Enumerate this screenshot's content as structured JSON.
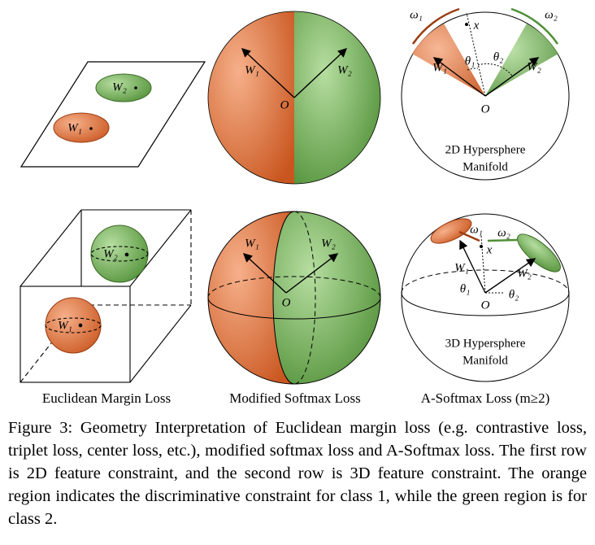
{
  "row1": {
    "euclidean": {
      "w1": "W₁",
      "w2": "W₂"
    },
    "softmax": {
      "w1": "W₁",
      "w2": "W₂",
      "origin": "O"
    },
    "asoftmax": {
      "omega1": "ω₁",
      "omega2": "ω₂",
      "x": "x",
      "theta1": "θ₁",
      "theta2": "θ₂",
      "w1": "W₁",
      "w2": "W₂",
      "origin": "O",
      "manifold_line1": "2D Hypersphere",
      "manifold_line2": "Manifold"
    }
  },
  "row2": {
    "euclidean": {
      "w1": "W₁",
      "w2": "W₂"
    },
    "softmax": {
      "w1": "W₁",
      "w2": "W₂",
      "origin": "O"
    },
    "asoftmax": {
      "omega1": "ω₁",
      "omega2": "ω₂",
      "x": "x",
      "theta1": "θ₁",
      "theta2": "θ₂",
      "w1": "W₁",
      "w2": "W₂",
      "origin": "O",
      "manifold_line1": "3D Hypersphere",
      "manifold_line2": "Manifold"
    }
  },
  "column_captions": [
    "Euclidean Margin Loss",
    "Modified Softmax Loss",
    "A-Softmax Loss (m≥2)"
  ],
  "caption": {
    "label": "Figure 3:",
    "text": "Geometry Interpretation of Euclidean margin loss (e.g. contrastive loss, triplet loss, center loss, etc.), modified softmax loss and A-Softmax loss. The first row is 2D feature constraint, and the second row is 3D feature constraint. The orange region indicates the discriminative constraint for class 1, while the green region is for class 2."
  }
}
